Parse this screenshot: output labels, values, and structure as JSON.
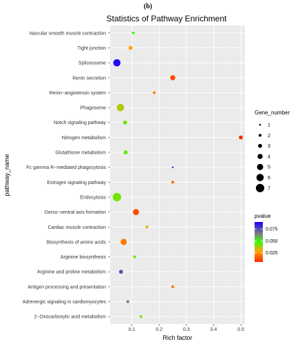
{
  "panel_label": "(b)",
  "chart_data": {
    "type": "scatter",
    "title": "Statistics of Pathway Enrichment",
    "xlabel": "Rich factor",
    "ylabel": "pathway_name",
    "xlim": [
      0.02,
      0.515
    ],
    "xticks": [
      0.1,
      0.2,
      0.3,
      0.4,
      0.5
    ],
    "xtick_labels": [
      "0.1",
      "0.2",
      "0.3",
      "0.4",
      "0.5"
    ],
    "grid": true,
    "categories": [
      "Vascular smooth muscle contraction",
      "Tight junction",
      "Spliceosome",
      "Renin secretion",
      "Renin−angiotensin system",
      "Phagosome",
      "Notch signaling pathway",
      "Nitrogen metabolism",
      "Glutathione metabolism",
      "Fc gamma R−mediated phagocytosis",
      "Estrogen signaling pathway",
      "Endocytosis",
      "Dorso−ventral axis formation",
      "Cardiac muscle contraction",
      "Biosynthesis of amino acids",
      "Arginine biosynthesis",
      "Arginine and proline metabolism",
      "Antigen processing and presentation",
      "Adrenergic signaling in cardiomyocytes",
      "2−Oxocarboxylic acid metabolism"
    ],
    "points": [
      {
        "pathway": "Vascular smooth muscle contraction",
        "rich_factor": 0.105,
        "gene_number": 2,
        "pvalue": 0.045
      },
      {
        "pathway": "Tight junction",
        "rich_factor": 0.095,
        "gene_number": 3,
        "pvalue": 0.028
      },
      {
        "pathway": "Spliceosome",
        "rich_factor": 0.045,
        "gene_number": 6,
        "pvalue": 0.088
      },
      {
        "pathway": "Renin secretion",
        "rich_factor": 0.25,
        "gene_number": 4,
        "pvalue": 0.01
      },
      {
        "pathway": "Renin−angiotensin system",
        "rich_factor": 0.182,
        "gene_number": 2,
        "pvalue": 0.022
      },
      {
        "pathway": "Phagosome",
        "rich_factor": 0.058,
        "gene_number": 6,
        "pvalue": 0.036
      },
      {
        "pathway": "Notch signaling pathway",
        "rich_factor": 0.075,
        "gene_number": 3,
        "pvalue": 0.042
      },
      {
        "pathway": "Nitrogen metabolism",
        "rich_factor": 0.5,
        "gene_number": 3,
        "pvalue": 0.005
      },
      {
        "pathway": "Glutathione metabolism",
        "rich_factor": 0.077,
        "gene_number": 3,
        "pvalue": 0.043
      },
      {
        "pathway": "Fc gamma R−mediated phagocytosis",
        "rich_factor": 0.25,
        "gene_number": 1,
        "pvalue": 0.08
      },
      {
        "pathway": "Estrogen signaling pathway",
        "rich_factor": 0.25,
        "gene_number": 2,
        "pvalue": 0.018
      },
      {
        "pathway": "Endocytosis",
        "rich_factor": 0.045,
        "gene_number": 7,
        "pvalue": 0.042
      },
      {
        "pathway": "Dorso−ventral axis formation",
        "rich_factor": 0.115,
        "gene_number": 5,
        "pvalue": 0.012
      },
      {
        "pathway": "Cardiac muscle contraction",
        "rich_factor": 0.155,
        "gene_number": 2,
        "pvalue": 0.032
      },
      {
        "pathway": "Biosynthesis of amino acids",
        "rich_factor": 0.07,
        "gene_number": 5,
        "pvalue": 0.02
      },
      {
        "pathway": "Arginine biosynthesis",
        "rich_factor": 0.11,
        "gene_number": 2,
        "pvalue": 0.044
      },
      {
        "pathway": "Arginine and proline metabolism",
        "rich_factor": 0.06,
        "gene_number": 3,
        "pvalue": 0.075
      },
      {
        "pathway": "Antigen processing and presentation",
        "rich_factor": 0.25,
        "gene_number": 2,
        "pvalue": 0.02
      },
      {
        "pathway": "Adrenergic signaling in cardiomyocytes",
        "rich_factor": 0.085,
        "gene_number": 2,
        "pvalue": 0.065
      },
      {
        "pathway": "2−Oxocarboxylic acid metabolism",
        "rich_factor": 0.133,
        "gene_number": 2,
        "pvalue": 0.04
      }
    ],
    "size_legend": {
      "title": "Gene_number",
      "values": [
        1,
        2,
        3,
        4,
        5,
        6,
        7
      ],
      "labels": [
        "1",
        "2",
        "3",
        "4",
        "5",
        "6",
        "7"
      ]
    },
    "color_legend": {
      "title": "pvalue",
      "range": [
        0.005,
        0.09
      ],
      "ticks": [
        0.075,
        0.05,
        0.025
      ],
      "tick_labels": [
        "0.075",
        "0.050",
        "0.025"
      ],
      "colors": [
        "#ff2a00",
        "#ffa500",
        "#33ff00",
        "#808080",
        "#1a00ff"
      ]
    },
    "legend_position": "right"
  }
}
